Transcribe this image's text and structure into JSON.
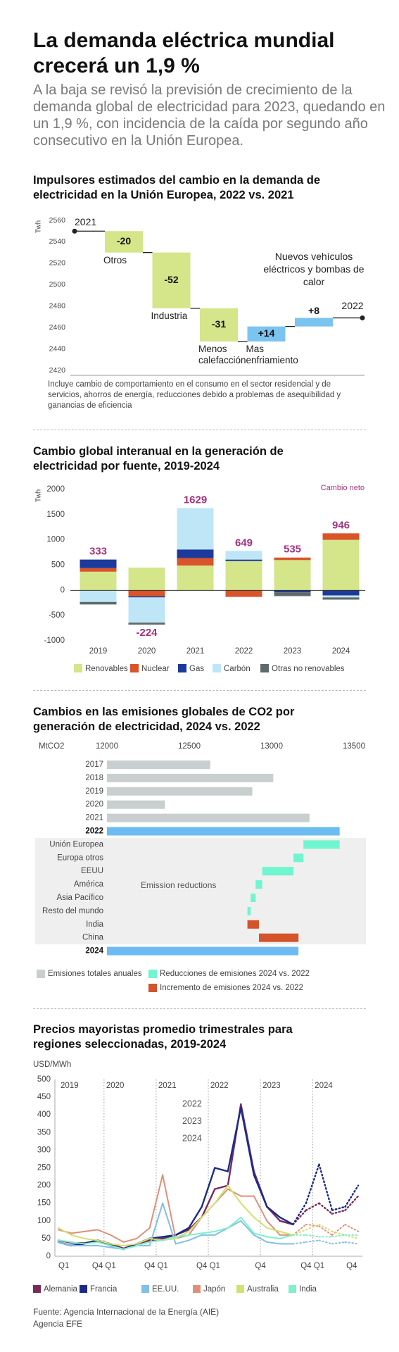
{
  "header": {
    "title": "La demanda eléctrica mundial crecerá un 1,9 %",
    "subtitle": "A la baja se revisó la previsión de crecimiento de la demanda global de electricidad para 2023, quedando en un 1,9 %, con incidencia de la caída por segundo año consecutivo en la Unión Europea."
  },
  "chart_data": [
    {
      "type": "waterfall",
      "title": "Impulsores estimados del cambio en la demanda de electricidad en la Unión Europea, 2022 vs. 2021",
      "y_label": "Twh",
      "ylim": [
        2420,
        2560
      ],
      "yticks": [
        2420,
        2440,
        2460,
        2480,
        2500,
        2520,
        2540,
        2560
      ],
      "start": {
        "label": "2021",
        "value": 2550
      },
      "end": {
        "label": "2022",
        "value": 2469
      },
      "categories": [
        "Otros",
        "Industria",
        "Menos calefacción",
        "Mas enfriamiento",
        "Nuevos vehículos eléctricos y bombas de calor"
      ],
      "values": [
        -20,
        -52,
        -31,
        14,
        8
      ],
      "value_labels": [
        "-20",
        "-52",
        "-31",
        "+14",
        "+8"
      ],
      "colors": {
        "decrease": "#d4e58a",
        "increase": "#7cc4f0"
      },
      "note": "Incluye cambio de comportamiento en el consumo en el sector residencial y de servicios, ahorros de energía, reducciones debido a problemas de asequibilidad y ganancias de eficiencia"
    },
    {
      "type": "bar",
      "stacked": true,
      "title": "Cambio global interanual en la generación de electricidad por fuente, 2019-2024",
      "y_label": "Twh",
      "ylim": [
        -1000,
        2000
      ],
      "yticks": [
        -1000,
        -500,
        0,
        500,
        1000,
        1500,
        2000
      ],
      "categories": [
        "2019",
        "2020",
        "2021",
        "2022",
        "2023",
        "2024"
      ],
      "series": [
        {
          "name": "Renovables",
          "color": "#d4e58a",
          "values": [
            370,
            450,
            490,
            580,
            600,
            1000
          ]
        },
        {
          "name": "Nuclear",
          "color": "#d9542b",
          "values": [
            70,
            -120,
            150,
            -130,
            50,
            130
          ]
        },
        {
          "name": "Gas",
          "color": "#1c3a9c",
          "values": [
            170,
            -20,
            170,
            30,
            -40,
            -100
          ]
        },
        {
          "name": "Carbón",
          "color": "#bfe6f7",
          "values": [
            -230,
            -500,
            820,
            170,
            0,
            -40
          ]
        },
        {
          "name": "Otras no renovables",
          "color": "#5f6b6b",
          "values": [
            -50,
            -40,
            0,
            0,
            -75,
            -44
          ]
        }
      ],
      "net_label": "Cambio neto",
      "net_color": "#a3337e",
      "net_values": [
        333,
        -224,
        1629,
        649,
        535,
        946
      ],
      "legend": "bottom"
    },
    {
      "type": "hbar",
      "title": "Cambios en las emisiones globales de CO2 por generación de electricidad, 2024 vs. 2022",
      "x_label": "MtCO2",
      "xlim": [
        12000,
        13500
      ],
      "xticks": [
        12000,
        12500,
        13000,
        13500
      ],
      "totals": {
        "categories": [
          "2017",
          "2018",
          "2019",
          "2020",
          "2021",
          "2022"
        ],
        "values": [
          12627,
          13010,
          12883,
          12352,
          13230,
          13413
        ]
      },
      "changes": {
        "categories": [
          "Unión Europea",
          "Europa otros",
          "EEUU",
          "América",
          "Asia Pacífico",
          "Resto del mundo",
          "India",
          "China"
        ],
        "values": [
          -220,
          -60,
          -190,
          -40,
          -30,
          -20,
          70,
          240
        ]
      },
      "final": {
        "category": "2024",
        "value": 13163
      },
      "highlight_color": "#6cbcf2",
      "annotation": "Emission reductions",
      "legend": [
        {
          "name": "Emisiones totales anuales",
          "color": "#c9cfcf"
        },
        {
          "name": "Reducciones de emisiones 2024 vs. 2022",
          "color": "#6ff5cf"
        },
        {
          "name": "Incremento de emisiones 2024 vs. 2022",
          "color": "#d4532a"
        }
      ]
    },
    {
      "type": "line",
      "title": "Precios mayoristas promedio trimestrales para regiones seleccionadas, 2019-2024",
      "y_label": "USD/MWh",
      "ylim": [
        0,
        500
      ],
      "yticks": [
        0,
        50,
        100,
        150,
        200,
        250,
        300,
        350,
        400,
        450,
        500
      ],
      "xlim": [
        2019,
        2024.75
      ],
      "xticks": [
        2019,
        2020,
        2021,
        2022,
        2023,
        2024
      ],
      "quarter_ticks": [
        {
          "value": 2019,
          "label": "Q1"
        },
        {
          "value": 2020,
          "label": "Q4 Q1"
        },
        {
          "value": 2021,
          "label": "Q4 Q1"
        },
        {
          "value": 2022,
          "label": "Q4 Q1"
        },
        {
          "value": 2023,
          "label": "Q4"
        },
        {
          "value": 2024,
          "label": "Q4 Q1"
        },
        {
          "value": 2024.75,
          "label": "Q4"
        }
      ],
      "annotations": [
        "2022",
        "2023",
        "2024"
      ],
      "dashed_from": 2023.5,
      "x": [
        2019,
        2019.25,
        2019.5,
        2019.75,
        2020,
        2020.25,
        2020.5,
        2020.75,
        2021,
        2021.25,
        2021.5,
        2021.75,
        2022,
        2022.25,
        2022.5,
        2022.75,
        2023,
        2023.25,
        2023.5,
        2023.75,
        2024,
        2024.25,
        2024.5,
        2024.75
      ],
      "series": [
        {
          "name": "Alemania",
          "color": "#7a2a5a",
          "values": [
            45,
            38,
            37,
            45,
            35,
            22,
            35,
            45,
            50,
            60,
            75,
            110,
            190,
            200,
            430,
            240,
            140,
            100,
            90,
            130,
            150,
            120,
            130,
            170
          ]
        },
        {
          "name": "Francia",
          "color": "#1a2a8a",
          "values": [
            40,
            30,
            35,
            45,
            30,
            20,
            35,
            50,
            55,
            60,
            80,
            140,
            250,
            240,
            420,
            230,
            140,
            110,
            90,
            150,
            260,
            130,
            140,
            200
          ]
        },
        {
          "name": "EE.UU.",
          "color": "#7fbfe8",
          "values": [
            40,
            30,
            30,
            30,
            25,
            20,
            30,
            30,
            150,
            35,
            45,
            60,
            60,
            80,
            100,
            60,
            40,
            35,
            35,
            40,
            45,
            35,
            40,
            35
          ]
        },
        {
          "name": "Japón",
          "color": "#e0907a",
          "values": [
            75,
            65,
            70,
            75,
            60,
            40,
            50,
            80,
            230,
            50,
            60,
            110,
            150,
            190,
            170,
            170,
            100,
            60,
            60,
            90,
            85,
            60,
            90,
            70
          ]
        },
        {
          "name": "Australia",
          "color": "#d4e070",
          "values": [
            80,
            60,
            50,
            45,
            35,
            30,
            35,
            50,
            45,
            50,
            70,
            110,
            150,
            200,
            150,
            110,
            80,
            70,
            60,
            75,
            90,
            70,
            60,
            50
          ]
        },
        {
          "name": "India",
          "color": "#7ff0c8",
          "values": [
            45,
            40,
            35,
            40,
            30,
            20,
            30,
            40,
            45,
            55,
            60,
            65,
            70,
            80,
            110,
            65,
            55,
            50,
            60,
            60,
            55,
            55,
            60,
            60
          ]
        }
      ]
    }
  ],
  "footer": {
    "source": "Fuente: Agencia Internacional de la Energía (AIE)",
    "agency": "Agencia EFE"
  }
}
